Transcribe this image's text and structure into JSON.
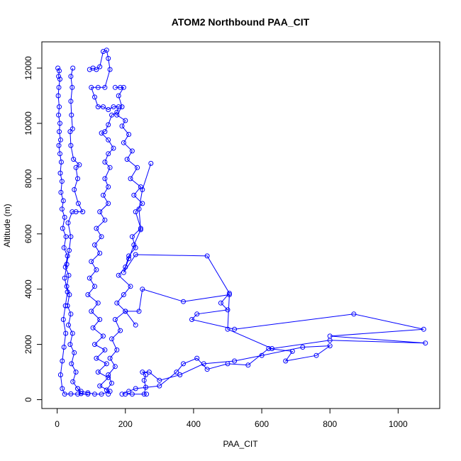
{
  "chart_data": {
    "type": "line",
    "title": "ATOM2 Northbound PAA_CIT",
    "xlabel": "PAA_CIT",
    "ylabel": "Altitude (m)",
    "xlim": [
      -45,
      1122
    ],
    "ylim": [
      -320,
      12950
    ],
    "x_ticks": [
      0,
      200,
      400,
      600,
      800,
      1000
    ],
    "y_ticks": [
      0,
      2000,
      4000,
      6000,
      8000,
      10000,
      12000
    ],
    "grid": false,
    "legend": "none",
    "marker": "open-circle",
    "series_color": "#0000ff",
    "series": [
      {
        "values_xy": [
          [
            2,
            12000
          ],
          [
            6,
            11900
          ],
          [
            4,
            11700
          ],
          [
            8,
            11600
          ],
          [
            5,
            11300
          ],
          [
            3,
            11000
          ],
          [
            6,
            10600
          ],
          [
            4,
            10300
          ],
          [
            8,
            10000
          ],
          [
            6,
            9700
          ],
          [
            10,
            9400
          ],
          [
            5,
            9200
          ],
          [
            8,
            8900
          ],
          [
            12,
            8600
          ],
          [
            9,
            8200
          ],
          [
            14,
            7900
          ],
          [
            11,
            7500
          ],
          [
            18,
            7200
          ],
          [
            14,
            6900
          ],
          [
            22,
            6600
          ],
          [
            16,
            6200
          ],
          [
            26,
            5900
          ],
          [
            20,
            5500
          ],
          [
            30,
            5200
          ],
          [
            24,
            4800
          ],
          [
            34,
            4500
          ],
          [
            28,
            4100
          ],
          [
            36,
            3800
          ],
          [
            30,
            3400
          ],
          [
            40,
            3100
          ],
          [
            33,
            2700
          ],
          [
            45,
            2400
          ],
          [
            38,
            2000
          ],
          [
            50,
            1700
          ],
          [
            42,
            1300
          ],
          [
            55,
            1000
          ],
          [
            46,
            650
          ],
          [
            60,
            400
          ],
          [
            70,
            220
          ],
          [
            90,
            200
          ],
          [
            60,
            200
          ],
          [
            40,
            210
          ],
          [
            22,
            200
          ],
          [
            15,
            400
          ],
          [
            10,
            900
          ],
          [
            15,
            1400
          ],
          [
            20,
            1900
          ],
          [
            25,
            2400
          ],
          [
            18,
            2900
          ],
          [
            24,
            3400
          ],
          [
            30,
            3900
          ],
          [
            22,
            4400
          ],
          [
            28,
            4900
          ],
          [
            35,
            5400
          ],
          [
            40,
            5900
          ],
          [
            32,
            6400
          ],
          [
            44,
            6800
          ],
          [
            55,
            6800
          ],
          [
            75,
            6800
          ],
          [
            62,
            7100
          ],
          [
            50,
            7600
          ],
          [
            60,
            8000
          ],
          [
            55,
            8400
          ],
          [
            65,
            8500
          ],
          [
            48,
            8700
          ],
          [
            40,
            9200
          ],
          [
            38,
            9700
          ],
          [
            45,
            9800
          ],
          [
            42,
            10300
          ],
          [
            40,
            10800
          ],
          [
            44,
            11300
          ],
          [
            40,
            11700
          ],
          [
            46,
            12000
          ]
        ]
      },
      {
        "values_xy": [
          [
            95,
            11950
          ],
          [
            105,
            12000
          ],
          [
            115,
            11950
          ],
          [
            125,
            12050
          ],
          [
            135,
            12600
          ],
          [
            145,
            12650
          ],
          [
            150,
            12350
          ],
          [
            155,
            11950
          ],
          [
            140,
            11300
          ],
          [
            120,
            11300
          ],
          [
            100,
            11300
          ],
          [
            110,
            10950
          ],
          [
            120,
            10600
          ],
          [
            135,
            10600
          ],
          [
            150,
            10500
          ],
          [
            165,
            10600
          ],
          [
            180,
            10600
          ],
          [
            175,
            10400
          ],
          [
            160,
            10300
          ],
          [
            150,
            9950
          ],
          [
            140,
            9700
          ],
          [
            130,
            9650
          ],
          [
            150,
            9400
          ],
          [
            165,
            9100
          ],
          [
            150,
            8900
          ],
          [
            140,
            8600
          ],
          [
            155,
            8400
          ],
          [
            140,
            8000
          ],
          [
            150,
            7700
          ],
          [
            135,
            7400
          ],
          [
            150,
            7100
          ],
          [
            125,
            6800
          ],
          [
            140,
            6500
          ],
          [
            115,
            6200
          ],
          [
            130,
            5900
          ],
          [
            110,
            5600
          ],
          [
            125,
            5300
          ],
          [
            100,
            5000
          ],
          [
            115,
            4700
          ],
          [
            95,
            4400
          ],
          [
            110,
            4100
          ],
          [
            90,
            3800
          ],
          [
            120,
            3500
          ],
          [
            100,
            3200
          ],
          [
            125,
            2900
          ],
          [
            105,
            2600
          ],
          [
            135,
            2300
          ],
          [
            110,
            2000
          ],
          [
            140,
            1800
          ],
          [
            115,
            1500
          ],
          [
            145,
            1300
          ],
          [
            120,
            1000
          ],
          [
            150,
            800
          ],
          [
            125,
            500
          ],
          [
            155,
            300
          ],
          [
            130,
            200
          ],
          [
            110,
            200
          ],
          [
            90,
            250
          ],
          [
            70,
            300
          ],
          [
            60,
            400
          ]
        ]
      },
      {
        "values_xy": [
          [
            170,
            11300
          ],
          [
            185,
            11300
          ],
          [
            195,
            11300
          ],
          [
            180,
            11000
          ],
          [
            190,
            10600
          ],
          [
            175,
            10300
          ],
          [
            200,
            10100
          ],
          [
            190,
            9900
          ],
          [
            210,
            9600
          ],
          [
            195,
            9300
          ],
          [
            220,
            9000
          ],
          [
            205,
            8700
          ],
          [
            235,
            8400
          ],
          [
            215,
            8000
          ],
          [
            245,
            7700
          ],
          [
            225,
            7400
          ],
          [
            250,
            7100
          ],
          [
            230,
            6800
          ],
          [
            245,
            6200
          ],
          [
            220,
            5900
          ],
          [
            230,
            5500
          ],
          [
            210,
            5200
          ],
          [
            200,
            4800
          ],
          [
            180,
            4500
          ],
          [
            215,
            4100
          ],
          [
            195,
            3800
          ],
          [
            175,
            3500
          ],
          [
            200,
            3200
          ],
          [
            170,
            2900
          ],
          [
            185,
            2500
          ],
          [
            160,
            2200
          ],
          [
            175,
            1800
          ],
          [
            155,
            1500
          ],
          [
            170,
            1200
          ],
          [
            150,
            900
          ],
          [
            160,
            600
          ],
          [
            145,
            350
          ],
          [
            150,
            200
          ]
        ]
      },
      {
        "values_xy": [
          [
            275,
            8550
          ],
          [
            250,
            7600
          ],
          [
            240,
            6900
          ],
          [
            245,
            6150
          ],
          [
            225,
            5600
          ],
          [
            210,
            5100
          ],
          [
            195,
            4600
          ],
          [
            230,
            5250
          ],
          [
            440,
            5200
          ],
          [
            505,
            3850
          ],
          [
            480,
            3500
          ],
          [
            500,
            3250
          ],
          [
            410,
            3100
          ],
          [
            395,
            2900
          ],
          [
            520,
            2550
          ],
          [
            870,
            3100
          ],
          [
            1075,
            2550
          ],
          [
            800,
            2300
          ],
          [
            1080,
            2050
          ],
          [
            800,
            2150
          ],
          [
            630,
            1850
          ],
          [
            500,
            2550
          ],
          [
            505,
            3800
          ],
          [
            370,
            3550
          ],
          [
            250,
            4000
          ],
          [
            240,
            3200
          ],
          [
            200,
            3200
          ],
          [
            230,
            2700
          ]
        ]
      },
      {
        "values_xy": [
          [
            190,
            200
          ],
          [
            210,
            300
          ],
          [
            230,
            400
          ],
          [
            300,
            500
          ],
          [
            350,
            1000
          ],
          [
            370,
            1300
          ],
          [
            410,
            1500
          ],
          [
            440,
            1100
          ],
          [
            500,
            1300
          ],
          [
            560,
            1250
          ],
          [
            620,
            1850
          ],
          [
            690,
            1750
          ],
          [
            670,
            1400
          ],
          [
            760,
            1600
          ],
          [
            800,
            1950
          ],
          [
            720,
            1900
          ],
          [
            600,
            1600
          ],
          [
            520,
            1400
          ],
          [
            430,
            1300
          ],
          [
            360,
            900
          ],
          [
            300,
            700
          ],
          [
            270,
            1000
          ],
          [
            250,
            1000
          ],
          [
            260,
            900
          ],
          [
            255,
            700
          ],
          [
            260,
            450
          ],
          [
            255,
            200
          ],
          [
            262,
            200
          ],
          [
            220,
            200
          ],
          [
            200,
            200
          ]
        ]
      }
    ]
  }
}
